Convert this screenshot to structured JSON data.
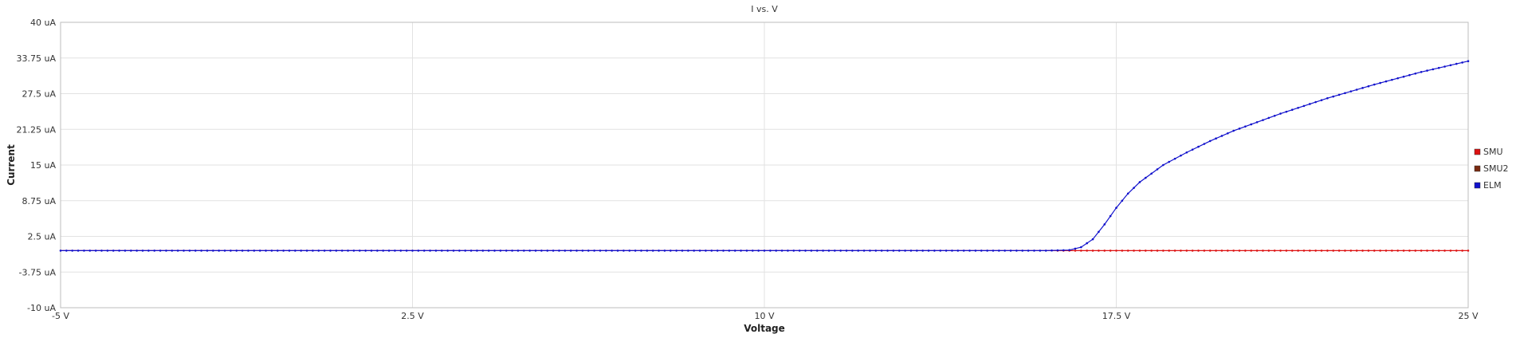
{
  "chart_data": {
    "type": "line",
    "title": "I vs. V",
    "xlabel": "Voltage",
    "ylabel": "Current",
    "xlim": [
      -5,
      25
    ],
    "ylim": [
      -10,
      40
    ],
    "x_ticks": [
      {
        "value": -5,
        "label": "-5 V"
      },
      {
        "value": 2.5,
        "label": "2.5 V"
      },
      {
        "value": 10,
        "label": "10 V"
      },
      {
        "value": 17.5,
        "label": "17.5 V"
      },
      {
        "value": 25,
        "label": "25 V"
      }
    ],
    "y_ticks": [
      {
        "value": 40,
        "label": "40 uA"
      },
      {
        "value": 33.75,
        "label": "33.75 uA"
      },
      {
        "value": 27.5,
        "label": "27.5 uA"
      },
      {
        "value": 21.25,
        "label": "21.25 uA"
      },
      {
        "value": 15,
        "label": "15 uA"
      },
      {
        "value": 8.75,
        "label": "8.75 uA"
      },
      {
        "value": 2.5,
        "label": "2.5 uA"
      },
      {
        "value": -3.75,
        "label": "-3.75 uA"
      },
      {
        "value": -10,
        "label": "-10 uA"
      }
    ],
    "grid": true,
    "legend_position": "right",
    "series": [
      {
        "name": "SMU",
        "color": "#dd1111",
        "x": [
          -5,
          0,
          5,
          10,
          15,
          16,
          17,
          17.5,
          18,
          19,
          20,
          21,
          22,
          23,
          24,
          25
        ],
        "y": [
          0,
          0,
          0,
          0,
          0,
          0,
          0,
          0,
          0,
          0,
          0,
          0,
          0,
          0,
          0,
          0
        ]
      },
      {
        "name": "SMU2",
        "color": "#7a2a10",
        "x": [],
        "y": []
      },
      {
        "name": "ELM",
        "color": "#1111cc",
        "x": [
          -5,
          0,
          5,
          10,
          15,
          16,
          16.5,
          16.75,
          17,
          17.25,
          17.5,
          17.75,
          18,
          18.5,
          19,
          19.5,
          20,
          21,
          22,
          23,
          24,
          25
        ],
        "y": [
          0,
          0,
          0,
          0,
          0,
          0,
          0.1,
          0.6,
          2.0,
          4.6,
          7.5,
          10.0,
          12.0,
          15.0,
          17.2,
          19.2,
          21.0,
          24.0,
          26.7,
          29.1,
          31.3,
          33.2
        ]
      }
    ]
  }
}
